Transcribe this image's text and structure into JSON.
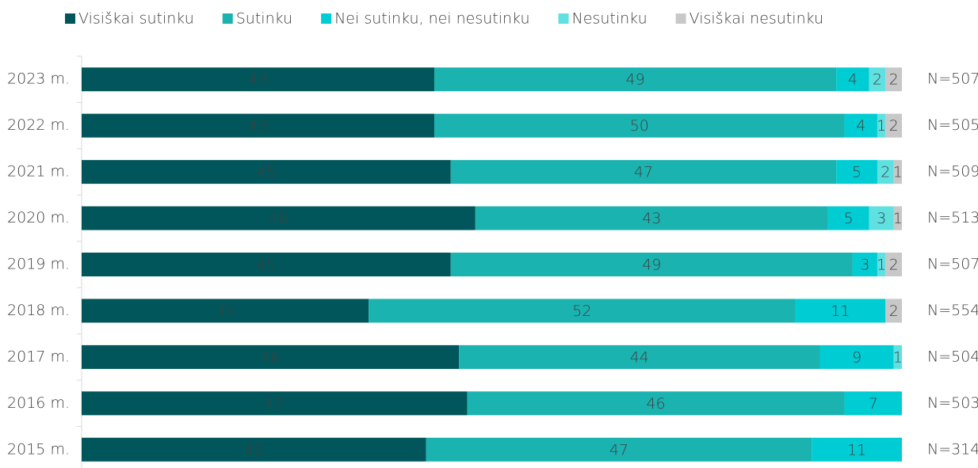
{
  "chart_data": {
    "type": "stacked-bar-horizontal",
    "categories": [
      "2023 m.",
      "2022 m.",
      "2021 m.",
      "2020 m.",
      "2019 m.",
      "2018 m.",
      "2017 m.",
      "2016 m.",
      "2015 m."
    ],
    "series": [
      {
        "name": "Visiškai sutinku",
        "color": "#00565a",
        "values": [
          43,
          43,
          45,
          48,
          45,
          35,
          46,
          47,
          42
        ]
      },
      {
        "name": "Sutinku",
        "color": "#1ab3b0",
        "values": [
          49,
          50,
          47,
          43,
          49,
          52,
          44,
          46,
          47
        ]
      },
      {
        "name": "Nei sutinku, nei nesutinku",
        "color": "#00cdd3",
        "values": [
          4,
          4,
          5,
          5,
          3,
          11,
          9,
          7,
          11
        ]
      },
      {
        "name": "Nesutinku",
        "color": "#5ee1e0",
        "values": [
          2,
          1,
          2,
          3,
          1,
          null,
          1,
          null,
          null
        ]
      },
      {
        "name": "Visiškai nesutinku",
        "color": "#c8c8c8",
        "values": [
          2,
          2,
          1,
          1,
          2,
          2,
          null,
          null,
          null
        ]
      }
    ],
    "sample_sizes": [
      "N=507",
      "N=505",
      "N=509",
      "N=513",
      "N=507",
      "N=554",
      "N=504",
      "N=503",
      "N=314"
    ],
    "xlim": [
      0,
      100
    ],
    "legend": "top"
  }
}
